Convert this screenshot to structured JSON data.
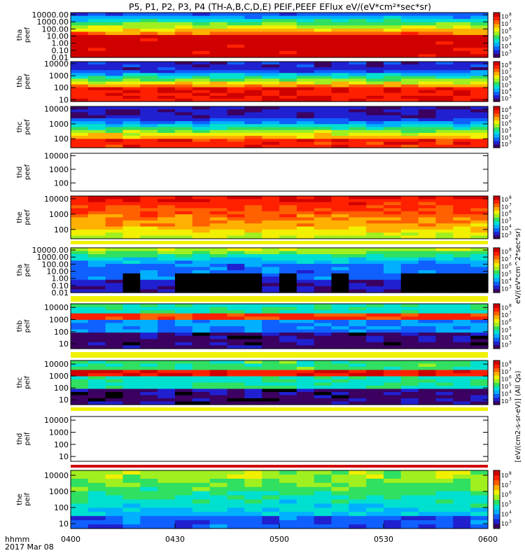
{
  "title": "P5, P1, P2, P3, P4 (TH-A,B,C,D,E) PEIF,PEEF EFlux eV/(eV*cm²*sec*sr)",
  "colors": {
    "colormap": [
      "#3b0060",
      "#2020d0",
      "#1060ff",
      "#00b0ff",
      "#00e0d0",
      "#30e060",
      "#a0f020",
      "#f0f000",
      "#ffb000",
      "#ff6000",
      "#ff2000",
      "#d00000"
    ],
    "line": "#000000",
    "background": "#ffffff"
  },
  "xaxis": {
    "ticks": [
      "0400",
      "0430",
      "0500",
      "0530",
      "0600"
    ],
    "label_line1": "hhmm",
    "label_line2": "2017 Mar 08"
  },
  "colorbar_labels": {
    "electron": "eV/(eV*cm^2*sec*sr)",
    "ion": "[eV/(cm2-s-sr-eV)] (All Qs)"
  },
  "chart_data": [
    {
      "type": "heatmap",
      "panel": "tha peef",
      "ylabel": [
        "tha",
        "peef"
      ],
      "log_y": true,
      "ylim": [
        0.01,
        20000
      ],
      "yticks": [
        "0.01",
        "0.10",
        "1.00",
        "10.00",
        "100.00",
        "1000.00",
        "10000.00"
      ],
      "zlim": [
        1000,
        100000000
      ],
      "ztick_exponents": [
        "3",
        "4",
        "5",
        "6",
        "7",
        "8"
      ],
      "xlim": [
        "0400",
        "0600"
      ],
      "has_data": true,
      "shown_colorbar": true,
      "summary_band": "none"
    },
    {
      "type": "heatmap",
      "panel": "thb peef",
      "ylabel": [
        "thb",
        "peef"
      ],
      "log_y": true,
      "ylim": [
        7,
        15000
      ],
      "yticks": [
        "10",
        "100",
        "1000",
        "10000"
      ],
      "zlim": [
        1000,
        100000000
      ],
      "ztick_exponents": [
        "3",
        "4",
        "5",
        "6",
        "7",
        "8"
      ],
      "xlim": [
        "0400",
        "0600"
      ],
      "has_data": true,
      "shown_colorbar": true,
      "summary_band": "none"
    },
    {
      "type": "heatmap",
      "panel": "thc peef",
      "ylabel": [
        "thc",
        "peef"
      ],
      "log_y": true,
      "ylim": [
        25,
        15000
      ],
      "yticks": [
        "100",
        "1000",
        "10000"
      ],
      "zlim": [
        1000,
        100000000
      ],
      "ztick_exponents": [
        "3",
        "4",
        "5",
        "6",
        "7",
        "8"
      ],
      "xlim": [
        "0400",
        "0600"
      ],
      "has_data": true,
      "shown_colorbar": true,
      "summary_band": "none"
    },
    {
      "type": "heatmap",
      "panel": "thd peef",
      "ylabel": [
        "thd",
        "peef"
      ],
      "log_y": true,
      "ylim": [
        25,
        15000
      ],
      "yticks": [
        "100",
        "1000",
        "10000"
      ],
      "zlim": [
        1000,
        100000000
      ],
      "ztick_exponents": [],
      "xlim": [
        "0400",
        "0600"
      ],
      "has_data": false,
      "shown_colorbar": false,
      "summary_band": "none"
    },
    {
      "type": "heatmap",
      "panel": "the peef",
      "ylabel": [
        "the",
        "peef"
      ],
      "log_y": true,
      "ylim": [
        25,
        15000
      ],
      "yticks": [
        "100",
        "1000",
        "10000"
      ],
      "zlim": [
        1000,
        100000000
      ],
      "ztick_exponents": [
        "3",
        "4",
        "5",
        "6",
        "7",
        "8"
      ],
      "xlim": [
        "0400",
        "0600"
      ],
      "has_data": true,
      "shown_colorbar": true,
      "summary_band": "yellow"
    },
    {
      "type": "heatmap",
      "panel": "tha peif",
      "ylabel": [
        "tha",
        "peif"
      ],
      "log_y": true,
      "ylim": [
        0.01,
        20000
      ],
      "yticks": [
        "0.01",
        "0.10",
        "1.00",
        "10.00",
        "100.00",
        "1000.00",
        "10000.00"
      ],
      "zlim": [
        1000,
        100000000
      ],
      "ztick_exponents": [
        "3",
        "4",
        "5",
        "6",
        "7",
        "8"
      ],
      "xlim": [
        "0400",
        "0600"
      ],
      "has_data": true,
      "shown_colorbar": true,
      "summary_band": "yellow"
    },
    {
      "type": "heatmap",
      "panel": "thb peif",
      "ylabel": [
        "thb",
        "peif"
      ],
      "log_y": true,
      "ylim": [
        4,
        20000
      ],
      "yticks": [
        "10",
        "100",
        "1000",
        "10000"
      ],
      "zlim": [
        1000,
        100000000
      ],
      "ztick_exponents": [
        "3",
        "4",
        "5",
        "6",
        "7",
        "8"
      ],
      "xlim": [
        "0400",
        "0600"
      ],
      "has_data": true,
      "shown_colorbar": true,
      "summary_band": "yellow"
    },
    {
      "type": "heatmap",
      "panel": "thc peif",
      "ylabel": [
        "thc",
        "peif"
      ],
      "log_y": true,
      "ylim": [
        4,
        20000
      ],
      "yticks": [
        "10",
        "100",
        "1000",
        "10000"
      ],
      "zlim": [
        1000,
        100000000
      ],
      "ztick_exponents": [
        "3",
        "4",
        "5",
        "6",
        "7",
        "8"
      ],
      "xlim": [
        "0400",
        "0600"
      ],
      "has_data": true,
      "shown_colorbar": true,
      "summary_band": "yellow"
    },
    {
      "type": "heatmap",
      "panel": "thd peif",
      "ylabel": [
        "thd",
        "peif"
      ],
      "log_y": true,
      "ylim": [
        4,
        20000
      ],
      "yticks": [
        "10",
        "100",
        "1000",
        "10000"
      ],
      "zlim": [
        1000,
        100000000
      ],
      "ztick_exponents": [],
      "xlim": [
        "0400",
        "0600"
      ],
      "has_data": false,
      "shown_colorbar": false,
      "summary_band": "red"
    },
    {
      "type": "heatmap",
      "panel": "the peif",
      "ylabel": [
        "the",
        "peif"
      ],
      "log_y": true,
      "ylim": [
        5,
        20000
      ],
      "yticks": [
        "10",
        "100",
        "1000",
        "10000"
      ],
      "zlim": [
        1000,
        100000000
      ],
      "ztick_exponents": [
        "3",
        "4",
        "5",
        "6",
        "7",
        "8"
      ],
      "xlim": [
        "0400",
        "0600"
      ],
      "has_data": true,
      "shown_colorbar": true,
      "summary_band": "none"
    }
  ]
}
